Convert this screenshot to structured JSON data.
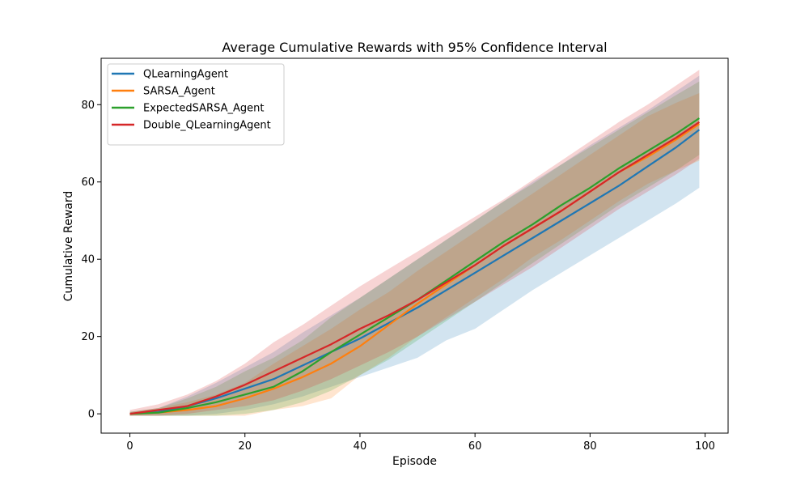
{
  "chart_data": {
    "type": "line",
    "title": "Average Cumulative Rewards with 95% Confidence Interval",
    "xlabel": "Episode",
    "ylabel": "Cumulative Reward",
    "xlim": [
      -5,
      104
    ],
    "ylim": [
      -5,
      92
    ],
    "xticks": [
      0,
      20,
      40,
      60,
      80,
      100
    ],
    "yticks": [
      0,
      20,
      40,
      60,
      80
    ],
    "grid": false,
    "legend_position": "top-left",
    "x": [
      0,
      5,
      10,
      15,
      20,
      25,
      30,
      35,
      40,
      45,
      50,
      55,
      60,
      65,
      70,
      75,
      80,
      85,
      90,
      95,
      99
    ],
    "series": [
      {
        "name": "QLearningAgent",
        "color": "#1f77b4",
        "values": [
          0,
          0.5,
          2,
          4,
          6.5,
          9,
          12.5,
          16,
          19.5,
          23.5,
          27.5,
          32,
          36.5,
          41,
          45.5,
          50,
          54.5,
          59,
          64,
          69,
          73.5
        ],
        "ci_low": [
          -0.5,
          -0.5,
          -0.5,
          0,
          1,
          2.5,
          4.5,
          7,
          9.5,
          12,
          14.5,
          19,
          22,
          27,
          32,
          36.5,
          41,
          45.5,
          50,
          54.5,
          58.5
        ],
        "ci_high": [
          0.5,
          1.5,
          4.5,
          8,
          12,
          16,
          21,
          25.5,
          30,
          35,
          40,
          45,
          50,
          55,
          60,
          64.5,
          69.5,
          74,
          78.5,
          83.5,
          87.5
        ]
      },
      {
        "name": "SARSA_Agent",
        "color": "#ff7f0e",
        "values": [
          0,
          0.3,
          1,
          2,
          4,
          6.5,
          9.5,
          13,
          17.5,
          23,
          28.5,
          33.5,
          38.5,
          43.5,
          48,
          52.5,
          57.5,
          62.5,
          66.5,
          71,
          75
        ],
        "ci_low": [
          -0.5,
          -0.5,
          -0.5,
          -0.5,
          -0.5,
          1,
          2,
          4,
          10,
          14.5,
          20,
          25,
          30,
          35,
          40.5,
          45,
          50,
          55,
          59.5,
          63,
          65.5
        ],
        "ci_high": [
          0.5,
          1.5,
          3,
          5,
          8,
          13,
          17.5,
          22,
          27,
          31.5,
          37,
          42,
          47,
          52,
          57,
          62,
          67,
          72,
          77,
          80.5,
          83
        ]
      },
      {
        "name": "ExpectedSARSA_Agent",
        "color": "#2ca02c",
        "values": [
          0,
          0.3,
          1.5,
          3,
          5,
          7,
          11,
          16,
          20.5,
          25,
          29.5,
          34.5,
          39.5,
          44.5,
          49,
          54,
          58.5,
          63.5,
          68,
          72.5,
          76.5
        ],
        "ci_low": [
          -0.5,
          -0.5,
          -0.5,
          -0.5,
          0,
          1,
          3,
          6,
          10,
          14,
          19,
          24,
          29,
          34,
          39,
          44,
          49,
          54,
          58.5,
          63,
          67
        ],
        "ci_high": [
          0.5,
          1.5,
          4,
          7,
          11,
          14.5,
          19,
          25,
          30,
          35,
          40,
          45,
          50,
          55,
          59.5,
          64.5,
          69,
          73.5,
          78,
          82.5,
          86
        ]
      },
      {
        "name": "Double_QLearningAgent",
        "color": "#d62728",
        "values": [
          0,
          1,
          2,
          4.5,
          7.5,
          11,
          14.5,
          18,
          22,
          25.5,
          29.5,
          34,
          38.5,
          43.5,
          48,
          52.5,
          57.5,
          62.5,
          67,
          71.5,
          75.5
        ],
        "ci_low": [
          -0.5,
          -0.5,
          0,
          1,
          2,
          3.5,
          6,
          9,
          12.5,
          16,
          20,
          24.5,
          29,
          33.5,
          38,
          43,
          48,
          53,
          57.5,
          62,
          66
        ],
        "ci_high": [
          1,
          2.5,
          5,
          8.5,
          13,
          18.5,
          23,
          28,
          33,
          37.5,
          42,
          46.5,
          51,
          55.5,
          60.5,
          65.5,
          70.5,
          75.5,
          80,
          85,
          89
        ]
      }
    ]
  }
}
